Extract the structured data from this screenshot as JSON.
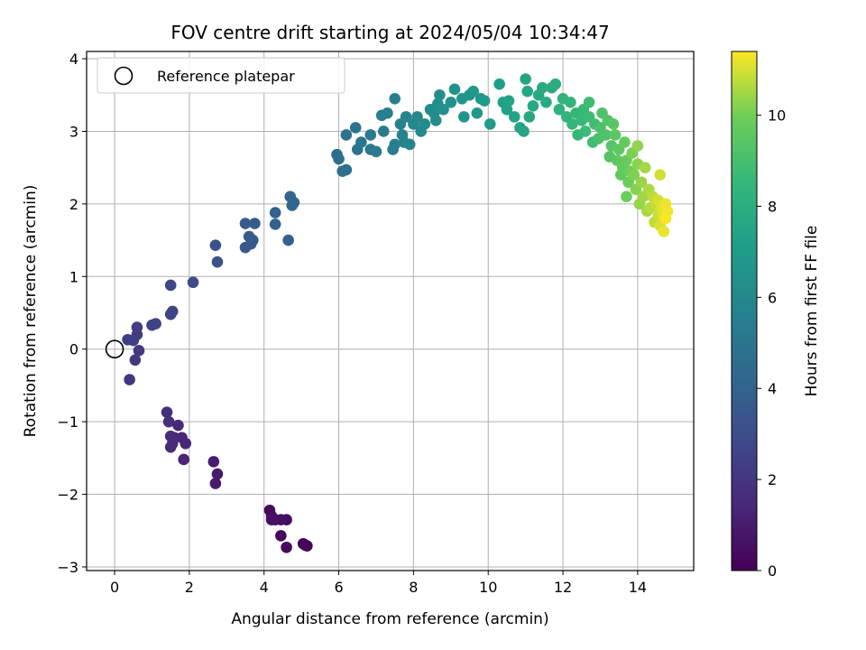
{
  "chart_data": {
    "type": "scatter",
    "title": "FOV centre drift starting at 2024/05/04 10:34:47",
    "xlabel": "Angular distance from reference (arcmin)",
    "ylabel": "Rotation from reference (arcmin)",
    "xlim": [
      -0.75,
      15.5
    ],
    "ylim": [
      -3.05,
      4.1
    ],
    "xticks": [
      0,
      2,
      4,
      6,
      8,
      10,
      12,
      14
    ],
    "yticks": [
      -3,
      -2,
      -1,
      0,
      1,
      2,
      3,
      4
    ],
    "grid": true,
    "legend": {
      "position": "top-left",
      "entries": [
        "Reference platepar"
      ]
    },
    "reference_point": {
      "x": 0,
      "y": 0
    },
    "colorbar": {
      "label": "Hours from first FF file",
      "range": [
        0,
        11.4
      ],
      "ticks": [
        0,
        2,
        4,
        6,
        8,
        10
      ],
      "colormap": "viridis"
    },
    "points": [
      [
        5.15,
        -2.71,
        0.05
      ],
      [
        5.05,
        -2.68,
        0.1
      ],
      [
        5.1,
        -2.7,
        0.15
      ],
      [
        4.6,
        -2.73,
        0.25
      ],
      [
        4.45,
        -2.57,
        0.3
      ],
      [
        4.6,
        -2.35,
        0.35
      ],
      [
        4.15,
        -2.22,
        0.4
      ],
      [
        4.2,
        -2.3,
        0.45
      ],
      [
        4.3,
        -2.35,
        0.5
      ],
      [
        4.45,
        -2.35,
        0.55
      ],
      [
        4.2,
        -2.35,
        0.6
      ],
      [
        2.7,
        -1.85,
        0.9
      ],
      [
        2.75,
        -1.72,
        0.95
      ],
      [
        2.65,
        -1.55,
        1.0
      ],
      [
        1.85,
        -1.52,
        1.3
      ],
      [
        1.9,
        -1.3,
        1.35
      ],
      [
        1.8,
        -1.22,
        1.4
      ],
      [
        1.7,
        -1.05,
        1.45
      ],
      [
        1.6,
        -1.22,
        1.5
      ],
      [
        1.55,
        -1.3,
        1.55
      ],
      [
        1.5,
        -1.35,
        1.6
      ],
      [
        1.5,
        -1.2,
        1.65
      ],
      [
        1.45,
        -1.0,
        1.7
      ],
      [
        1.4,
        -0.87,
        1.75
      ],
      [
        0.4,
        -0.42,
        2.0
      ],
      [
        0.55,
        -0.15,
        2.1
      ],
      [
        0.65,
        -0.02,
        2.15
      ],
      [
        0.6,
        0.2,
        2.2
      ],
      [
        0.6,
        0.3,
        2.25
      ],
      [
        0.35,
        0.13,
        2.3
      ],
      [
        0.5,
        0.12,
        2.35
      ],
      [
        1.0,
        0.33,
        2.5
      ],
      [
        1.1,
        0.35,
        2.55
      ],
      [
        1.55,
        0.52,
        2.6
      ],
      [
        1.5,
        0.48,
        2.65
      ],
      [
        1.5,
        0.88,
        2.7
      ],
      [
        2.1,
        0.92,
        3.0
      ],
      [
        2.75,
        1.2,
        3.2
      ],
      [
        2.7,
        1.43,
        3.25
      ],
      [
        3.5,
        1.4,
        3.5
      ],
      [
        3.7,
        1.5,
        3.55
      ],
      [
        3.6,
        1.55,
        3.6
      ],
      [
        3.65,
        1.45,
        3.6
      ],
      [
        3.5,
        1.73,
        3.65
      ],
      [
        3.75,
        1.73,
        3.7
      ],
      [
        4.3,
        1.72,
        3.9
      ],
      [
        4.3,
        1.88,
        3.95
      ],
      [
        4.65,
        1.5,
        4.0
      ],
      [
        4.7,
        2.1,
        4.1
      ],
      [
        4.8,
        2.02,
        4.15
      ],
      [
        4.75,
        1.98,
        4.2
      ],
      [
        5.95,
        2.68,
        4.6
      ],
      [
        6.0,
        2.62,
        4.65
      ],
      [
        6.1,
        2.45,
        4.7
      ],
      [
        6.2,
        2.47,
        4.75
      ],
      [
        6.2,
        2.95,
        4.8
      ],
      [
        6.45,
        3.05,
        4.9
      ],
      [
        6.5,
        2.75,
        4.95
      ],
      [
        6.6,
        2.85,
        5.0
      ],
      [
        6.85,
        2.75,
        5.2
      ],
      [
        6.85,
        2.95,
        5.25
      ],
      [
        7.0,
        2.72,
        5.3
      ],
      [
        7.2,
        3.0,
        5.35
      ],
      [
        7.15,
        3.22,
        5.4
      ],
      [
        7.3,
        3.25,
        5.45
      ],
      [
        7.45,
        2.75,
        5.5
      ],
      [
        7.5,
        3.45,
        5.55
      ],
      [
        7.5,
        2.82,
        5.6
      ],
      [
        7.65,
        3.1,
        5.7
      ],
      [
        7.7,
        2.95,
        5.75
      ],
      [
        7.8,
        3.2,
        5.8
      ],
      [
        7.75,
        2.85,
        5.85
      ],
      [
        7.9,
        2.82,
        5.9
      ],
      [
        8.0,
        3.1,
        5.95
      ],
      [
        8.1,
        3.2,
        6.0
      ],
      [
        8.2,
        3.0,
        6.05
      ],
      [
        8.3,
        3.1,
        6.1
      ],
      [
        8.45,
        3.3,
        6.15
      ],
      [
        8.55,
        3.25,
        6.2
      ],
      [
        8.6,
        3.15,
        6.25
      ],
      [
        8.65,
        3.38,
        6.3
      ],
      [
        8.7,
        3.5,
        6.35
      ],
      [
        8.8,
        3.3,
        6.4
      ],
      [
        9.0,
        3.4,
        6.5
      ],
      [
        9.1,
        3.58,
        6.55
      ],
      [
        9.3,
        3.45,
        6.6
      ],
      [
        9.35,
        3.2,
        6.65
      ],
      [
        9.5,
        3.5,
        6.7
      ],
      [
        9.6,
        3.55,
        6.75
      ],
      [
        9.7,
        3.25,
        6.8
      ],
      [
        9.8,
        3.45,
        6.85
      ],
      [
        9.9,
        3.42,
        6.9
      ],
      [
        10.05,
        3.1,
        6.95
      ],
      [
        10.3,
        3.65,
        7.2
      ],
      [
        10.4,
        3.4,
        7.25
      ],
      [
        10.5,
        3.3,
        7.3
      ],
      [
        10.55,
        3.42,
        7.35
      ],
      [
        10.7,
        3.2,
        7.4
      ],
      [
        10.85,
        3.05,
        7.45
      ],
      [
        10.95,
        3.0,
        7.5
      ],
      [
        11.0,
        3.72,
        7.55
      ],
      [
        11.05,
        3.55,
        7.6
      ],
      [
        11.1,
        3.2,
        7.65
      ],
      [
        11.2,
        3.35,
        7.7
      ],
      [
        11.35,
        3.5,
        7.75
      ],
      [
        11.45,
        3.6,
        7.8
      ],
      [
        11.55,
        3.4,
        7.85
      ],
      [
        11.7,
        3.6,
        7.9
      ],
      [
        11.8,
        3.65,
        7.95
      ],
      [
        11.9,
        3.3,
        8.2
      ],
      [
        12.0,
        3.45,
        8.3
      ],
      [
        12.1,
        3.2,
        8.35
      ],
      [
        12.2,
        3.4,
        8.4
      ],
      [
        12.25,
        3.1,
        8.45
      ],
      [
        12.35,
        3.25,
        8.5
      ],
      [
        12.4,
        2.95,
        8.55
      ],
      [
        12.5,
        3.15,
        8.6
      ],
      [
        12.55,
        3.3,
        8.65
      ],
      [
        12.6,
        3.0,
        8.7
      ],
      [
        12.7,
        3.2,
        8.75
      ],
      [
        12.7,
        3.4,
        8.8
      ],
      [
        12.8,
        2.85,
        8.85
      ],
      [
        12.85,
        3.1,
        8.9
      ],
      [
        12.95,
        2.9,
        9.1
      ],
      [
        13.0,
        3.05,
        9.15
      ],
      [
        13.05,
        3.25,
        9.2
      ],
      [
        13.15,
        2.95,
        9.25
      ],
      [
        13.2,
        3.15,
        9.3
      ],
      [
        13.25,
        2.65,
        9.35
      ],
      [
        13.3,
        2.8,
        9.4
      ],
      [
        13.35,
        3.1,
        9.45
      ],
      [
        13.4,
        2.95,
        9.5
      ],
      [
        13.45,
        2.6,
        9.55
      ],
      [
        13.5,
        2.75,
        9.6
      ],
      [
        13.55,
        2.4,
        9.65
      ],
      [
        13.6,
        2.5,
        9.7
      ],
      [
        13.65,
        2.85,
        9.75
      ],
      [
        13.7,
        2.6,
        9.8
      ],
      [
        13.75,
        2.3,
        9.85
      ],
      [
        13.7,
        2.1,
        9.9
      ],
      [
        13.8,
        2.45,
        9.95
      ],
      [
        13.85,
        2.7,
        10.1
      ],
      [
        13.9,
        2.4,
        10.15
      ],
      [
        13.95,
        2.2,
        10.2
      ],
      [
        14.0,
        2.55,
        10.25
      ],
      [
        14.0,
        2.8,
        10.3
      ],
      [
        14.05,
        2.0,
        10.35
      ],
      [
        14.1,
        2.3,
        10.4
      ],
      [
        14.15,
        2.1,
        10.45
      ],
      [
        14.2,
        2.5,
        10.5
      ],
      [
        14.25,
        1.9,
        10.55
      ],
      [
        14.3,
        2.2,
        10.6
      ],
      [
        14.35,
        1.95,
        10.7
      ],
      [
        14.4,
        2.1,
        10.75
      ],
      [
        14.45,
        1.75,
        10.8
      ],
      [
        14.5,
        2.0,
        10.85
      ],
      [
        14.55,
        1.85,
        10.9
      ],
      [
        14.6,
        2.4,
        10.95
      ],
      [
        14.55,
        2.05,
        11.0
      ],
      [
        14.6,
        1.7,
        11.05
      ],
      [
        14.65,
        1.95,
        11.1
      ],
      [
        14.7,
        1.85,
        11.15
      ],
      [
        14.7,
        1.62,
        11.2
      ],
      [
        14.75,
        2.0,
        11.25
      ],
      [
        14.8,
        1.9,
        11.3
      ],
      [
        14.75,
        1.8,
        11.35
      ]
    ]
  }
}
